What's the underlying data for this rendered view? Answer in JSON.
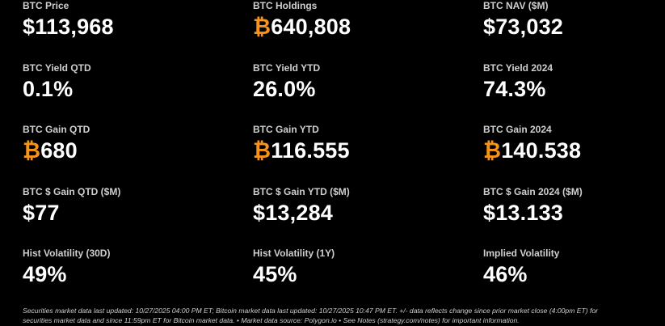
{
  "metrics": [
    {
      "id": "btc-price",
      "label": "BTC Price",
      "prefix": "$",
      "value": "113,968"
    },
    {
      "id": "btc-holdings",
      "label": "BTC Holdings",
      "prefix": "₿",
      "value": "640,808"
    },
    {
      "id": "btc-nav",
      "label": "BTC NAV ($M)",
      "prefix": "$",
      "value": "73,032"
    },
    {
      "id": "btc-yield-qtd",
      "label": "BTC Yield QTD",
      "prefix": "",
      "value": "0.1%"
    },
    {
      "id": "btc-yield-ytd",
      "label": "BTC Yield YTD",
      "prefix": "",
      "value": "26.0%"
    },
    {
      "id": "btc-yield-2024",
      "label": "BTC Yield 2024",
      "prefix": "",
      "value": "74.3%"
    },
    {
      "id": "btc-gain-qtd",
      "label": "BTC Gain QTD",
      "prefix": "₿",
      "value": "680"
    },
    {
      "id": "btc-gain-ytd",
      "label": "BTC Gain YTD",
      "prefix": "₿",
      "value": "116.555"
    },
    {
      "id": "btc-gain-2024",
      "label": "BTC Gain 2024",
      "prefix": "₿",
      "value": "140.538"
    },
    {
      "id": "btc-dollar-gain-qtd",
      "label": "BTC $ Gain QTD ($M)",
      "prefix": "$",
      "value": "77"
    },
    {
      "id": "btc-dollar-gain-ytd",
      "label": "BTC $ Gain YTD ($M)",
      "prefix": "$",
      "value": "13,284"
    },
    {
      "id": "btc-dollar-gain-2024",
      "label": "BTC $ Gain 2024 ($M)",
      "prefix": "$",
      "value": "13.133"
    },
    {
      "id": "hist-volatility-30d",
      "label": "Hist Volatility (30D)",
      "prefix": "",
      "value": "49%"
    },
    {
      "id": "hist-volatility-1y",
      "label": "Hist Volatility (1Y)",
      "prefix": "",
      "value": "45%"
    },
    {
      "id": "implied-volatility",
      "label": "Implied Volatility",
      "prefix": "",
      "value": "46%"
    }
  ],
  "footnote": {
    "line1": "Securities market data last updated: 10/27/2025 04:00 PM ET; Bitcoin market data last updated: 10/27/2025 10:47 PM ET. +/- data reflects change since prior market close (4:00pm ET) for",
    "line2": "securities market data and since 11:59pm ET for Bitcoin market data.   •   Market data source: Polygon.io  •  See Notes (strategy.com/notes) for important information."
  },
  "colors": {
    "background": "#000000",
    "text": "#ffffff",
    "label": "#cfcfcf",
    "btc_symbol": "#f7931a"
  }
}
